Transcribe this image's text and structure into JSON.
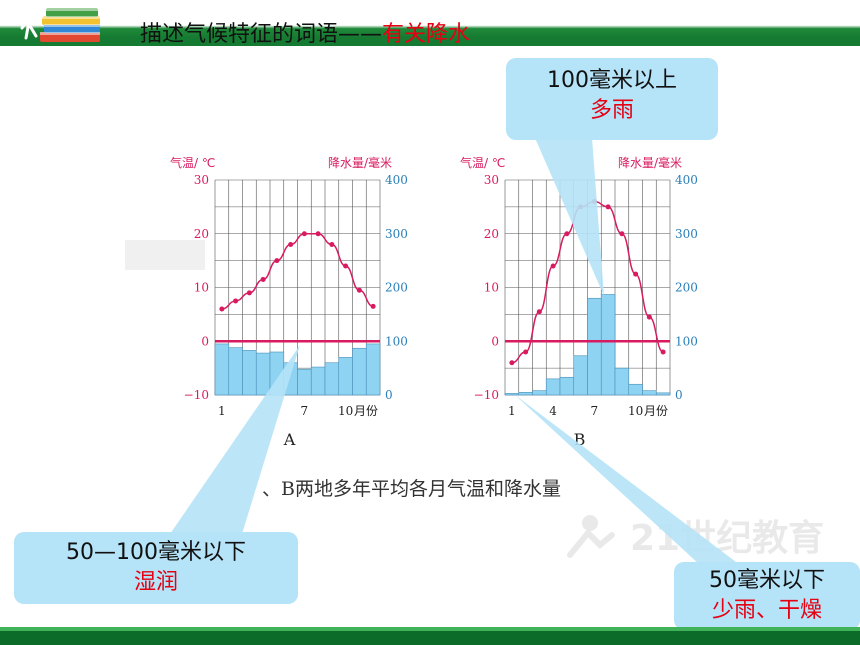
{
  "header": {
    "title": "描述气候特征的词语——",
    "title_highlight": "有关降水"
  },
  "figure_caption": "、B两地多年平均各月气温和降水量",
  "callouts": {
    "top": {
      "line1": "100毫米以上",
      "line2": "多雨"
    },
    "left": {
      "line1": "50—100毫米以下",
      "line2": "湿润"
    },
    "right": {
      "line1": "50毫米以下",
      "line2": "少雨、干燥"
    }
  },
  "watermark": {
    "text": "21世纪教育"
  },
  "colors": {
    "temperature": "#d81b60",
    "precipitation": "#8fd3f2",
    "highlight": "#e60012",
    "bar_green": "#0d6b2a"
  },
  "chart_data": [
    {
      "type": "bar+line",
      "label": "A",
      "left_axis_label": "气温/ ℃",
      "right_axis_label": "降水量/毫米",
      "x_axis_label": "月份",
      "x_tick_labels": [
        "1",
        "7",
        "10"
      ],
      "temp_ticks": [
        "30",
        "20",
        "10",
        "0",
        "−10"
      ],
      "precip_ticks": [
        "400",
        "300",
        "200",
        "100",
        "0"
      ],
      "temp_range": [
        -10,
        30
      ],
      "precip_range": [
        0,
        400
      ],
      "months": [
        1,
        2,
        3,
        4,
        5,
        6,
        7,
        8,
        9,
        10,
        11,
        12
      ],
      "temperature": [
        6,
        7.5,
        9,
        11.5,
        15,
        18,
        20,
        20,
        18,
        14,
        9.5,
        6.5
      ],
      "precipitation": [
        95,
        88,
        83,
        78,
        80,
        60,
        48,
        52,
        60,
        70,
        87,
        95
      ],
      "grid": true
    },
    {
      "type": "bar+line",
      "label": "B",
      "left_axis_label": "气温/ ℃",
      "right_axis_label": "降水量/毫米",
      "x_axis_label": "月份",
      "x_tick_labels": [
        "1",
        "4",
        "7",
        "10"
      ],
      "temp_ticks": [
        "30",
        "20",
        "10",
        "0",
        "−10"
      ],
      "precip_ticks": [
        "400",
        "300",
        "200",
        "100",
        "0"
      ],
      "temp_range": [
        -10,
        30
      ],
      "precip_range": [
        0,
        400
      ],
      "months": [
        1,
        2,
        3,
        4,
        5,
        6,
        7,
        8,
        9,
        10,
        11,
        12
      ],
      "temperature": [
        -4,
        -2,
        5.5,
        14,
        20,
        25,
        26,
        25,
        20,
        12.5,
        4.5,
        -2
      ],
      "precipitation": [
        3,
        5,
        8,
        30,
        33,
        73,
        180,
        187,
        50,
        20,
        8,
        4
      ],
      "grid": true
    }
  ]
}
